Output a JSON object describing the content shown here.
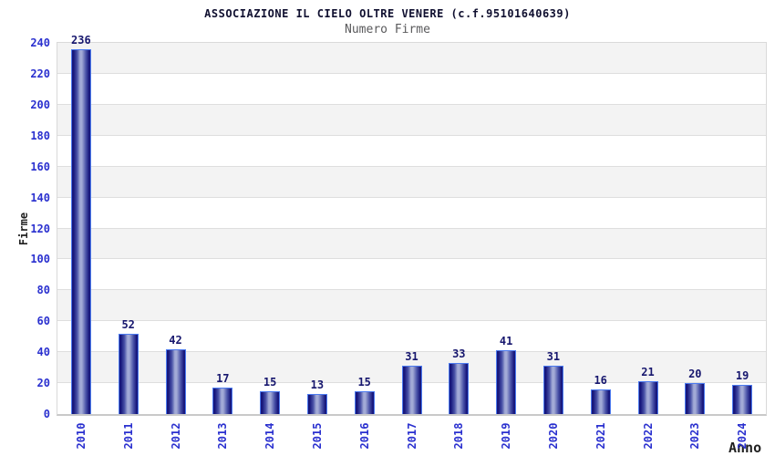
{
  "chart_data": {
    "type": "bar",
    "title": "ASSOCIAZIONE IL CIELO OLTRE VENERE (c.f.95101640639)",
    "subtitle": "Numero Firme",
    "xlabel": "Anno",
    "ylabel": "Firme",
    "categories": [
      "2010",
      "2011",
      "2012",
      "2013",
      "2014",
      "2015",
      "2016",
      "2017",
      "2018",
      "2019",
      "2020",
      "2021",
      "2022",
      "2023",
      "2024"
    ],
    "values": [
      236,
      52,
      42,
      17,
      15,
      13,
      15,
      31,
      33,
      41,
      31,
      16,
      21,
      20,
      19
    ],
    "ylim": [
      0,
      240
    ],
    "ytick_step": 20,
    "yticks": [
      0,
      20,
      40,
      60,
      80,
      100,
      120,
      140,
      160,
      180,
      200,
      220,
      240
    ],
    "legend": "none",
    "grid": "horizontal gridlines every 20 with alternating gray/white bands",
    "bar_value_labels_shown": true,
    "x_tick_rotation_deg": -90,
    "colors": {
      "background": "#ffffff",
      "title_text": "#101030",
      "subtitle_text": "#5a5a5c",
      "axis_tick_blue": "#2a30cf",
      "bar_value_navy": "#17176e",
      "axis_title_text": "#1f1f1f",
      "band_gray": "#f3f3f3",
      "band_white": "#ffffff",
      "grid_line": "#dedede",
      "plot_border": "#d9d9d9",
      "baseline": "#c9c9c9",
      "bar_edge_dark": "#17177c",
      "bar_mid": "#4a53a8",
      "bar_center_light": "#a2aad6",
      "bar_border_blue": "#4c7bf0"
    }
  }
}
